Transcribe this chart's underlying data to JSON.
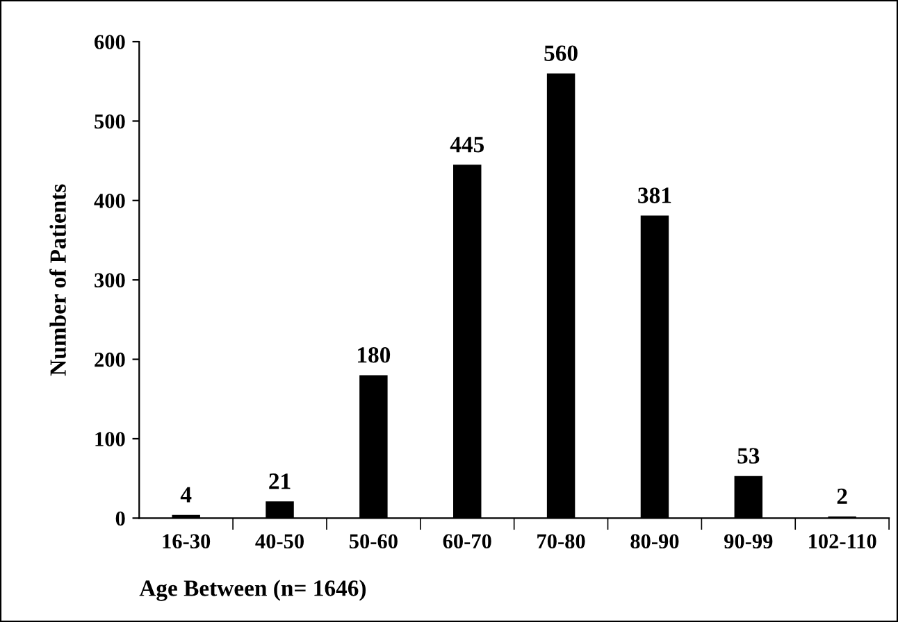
{
  "chart_data": {
    "type": "bar",
    "categories": [
      "16-30",
      "40-50",
      "50-60",
      "60-70",
      "70-80",
      "80-90",
      "90-99",
      "102-110"
    ],
    "values": [
      4,
      21,
      180,
      445,
      560,
      381,
      53,
      2
    ],
    "color": "#000000",
    "ylabel": "Number of Patients",
    "xlabel": "Age Between (n= 1646)",
    "ylim": [
      0,
      600
    ],
    "yticks": [
      0,
      100,
      200,
      300,
      400,
      500,
      600
    ],
    "data_labels": true,
    "grid": false,
    "legend": false
  }
}
